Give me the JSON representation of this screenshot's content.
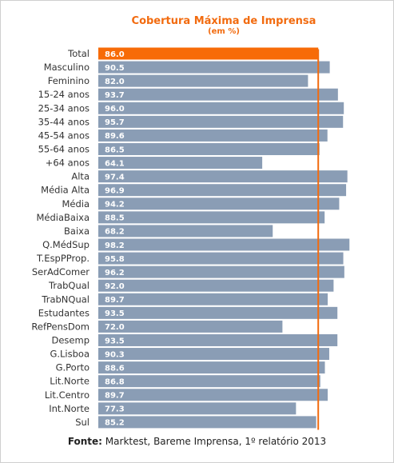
{
  "chart_data": {
    "type": "bar",
    "orientation": "horizontal",
    "title": "Cobertura Máxima de Imprensa",
    "subtitle": "(em %)",
    "categories": [
      "Total",
      "Masculino",
      "Feminino",
      "15-24 anos",
      "25-34 anos",
      "35-44 anos",
      "45-54 anos",
      "55-64 anos",
      "+64 anos",
      "Alta",
      "Média Alta",
      "Média",
      "MédiaBaixa",
      "Baixa",
      "Q.MédSup",
      "T.EspPProp.",
      "SerAdComer",
      "TrabQual",
      "TrabNQual",
      "Estudantes",
      "RefPensDom",
      "Desemp",
      "G.Lisboa",
      "G.Porto",
      "Lit.Norte",
      "Lit.Centro",
      "Int.Norte",
      "Sul"
    ],
    "values": [
      86.0,
      90.5,
      82.0,
      93.7,
      96.0,
      95.7,
      89.6,
      86.5,
      64.1,
      97.4,
      96.9,
      94.2,
      88.5,
      68.2,
      98.2,
      95.8,
      96.2,
      92.0,
      89.7,
      93.5,
      72.0,
      93.5,
      90.3,
      88.6,
      86.8,
      89.7,
      77.3,
      85.2
    ],
    "value_labels": [
      "86.0",
      "90.5",
      "82.0",
      "93.7",
      "96.0",
      "95.7",
      "89.6",
      "86.5",
      "64.1",
      "97.4",
      "96.9",
      "94.2",
      "88.5",
      "68.2",
      "98.2",
      "95.8",
      "96.2",
      "92.0",
      "89.7",
      "93.5",
      "72.0",
      "93.5",
      "90.3",
      "88.6",
      "86.8",
      "89.7",
      "77.3",
      "85.2"
    ],
    "highlight_index": 0,
    "reference_line": 86.0,
    "colors": {
      "highlight": "#f76b07",
      "bar": "#8a9db5",
      "reference_line": "#f26b0f",
      "label_text": "#ffffff",
      "category_text": "#333333"
    },
    "grid": false,
    "legend": "none"
  },
  "source": {
    "label": "Fonte:",
    "text": " Marktest, Bareme Imprensa, 1º relatório 2013"
  }
}
